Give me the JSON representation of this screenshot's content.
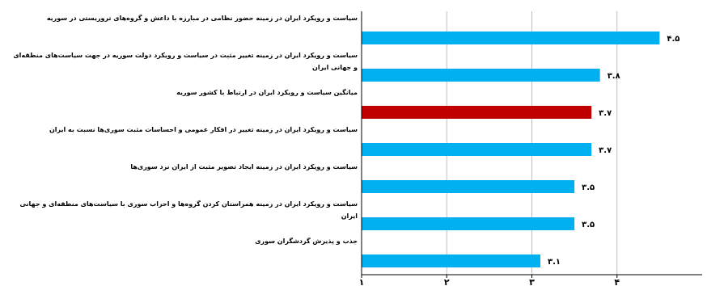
{
  "chart_data": {
    "type": "bar",
    "orientation": "horizontal",
    "categories": [
      "سیاست و رویکرد ایران در زمینه حضور نظامی در مبارزه با داعش و گروه‌های تروریستی در سوریه",
      "سیاست و رویکرد ایران در زمینه تغییر مثبت در سیاست و رویکرد دولت سوریه در جهت سیاست‌های منطقه‌ای و جهانی ایران",
      "میانگین سیاست و رویکرد ایران در ارتباط با کشور سوریه",
      "سیاست و رویکرد ایران در زمینه تغییر در افکار عمومی و احساسات مثبت سوری‌ها نسبت به ایران",
      "سیاست و رویکرد ایران در زمینه ایجاد تصویر مثبت از ایران نزد سوری‌ها",
      "سیاست و رویکرد ایران در زمینه همراستان کردن گروه‌ها و احزاب سوری با سیاست‌های منطقه‌ای و جهانی ایران",
      "جذب و پذیرش گردشگران سوری"
    ],
    "values": [
      4.5,
      3.8,
      3.7,
      3.7,
      3.5,
      3.5,
      3.1
    ],
    "value_labels": [
      "۴.۵",
      "۳.۸",
      "۳.۷",
      "۳.۷",
      "۳.۵",
      "۳.۵",
      "۳.۱"
    ],
    "highlight_index": 2,
    "colors": {
      "bar": "#00b0f0",
      "highlight": "#c00000",
      "grid": "#bfbfbf",
      "axis": "#000000"
    },
    "xlim": [
      1,
      5
    ],
    "xticks": [
      1,
      2,
      3,
      4
    ],
    "xtick_labels": [
      "۱",
      "۲",
      "۳",
      "۴"
    ],
    "grid": true,
    "title": "",
    "xlabel": "",
    "ylabel": ""
  }
}
